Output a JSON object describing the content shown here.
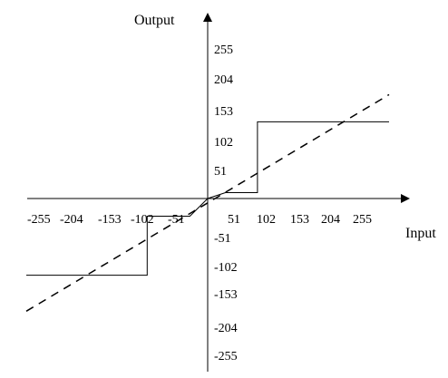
{
  "chart_data": {
    "type": "line",
    "xlabel": "Input",
    "ylabel": "Output",
    "xlim": [
      -255,
      255
    ],
    "ylim": [
      -255,
      255
    ],
    "grid": false,
    "x_ticks": [
      "-255",
      "-204",
      "-153",
      "-102",
      "-51",
      "51",
      "102",
      "153",
      "204",
      "255"
    ],
    "y_ticks": [
      "255",
      "204",
      "153",
      "102",
      "51",
      "-51",
      "-102",
      "-153",
      "-204",
      "-255"
    ],
    "series": [
      {
        "style": "solid",
        "x": [
          -255,
          -85,
          -85,
          -25,
          0,
          25,
          25,
          70,
          70,
          255
        ],
        "y": [
          -130,
          -130,
          -30,
          -30,
          0,
          10,
          10,
          10,
          130,
          130
        ]
      },
      {
        "style": "dashed",
        "x": [
          -255,
          255
        ],
        "y": [
          -191,
          176
        ]
      }
    ]
  }
}
